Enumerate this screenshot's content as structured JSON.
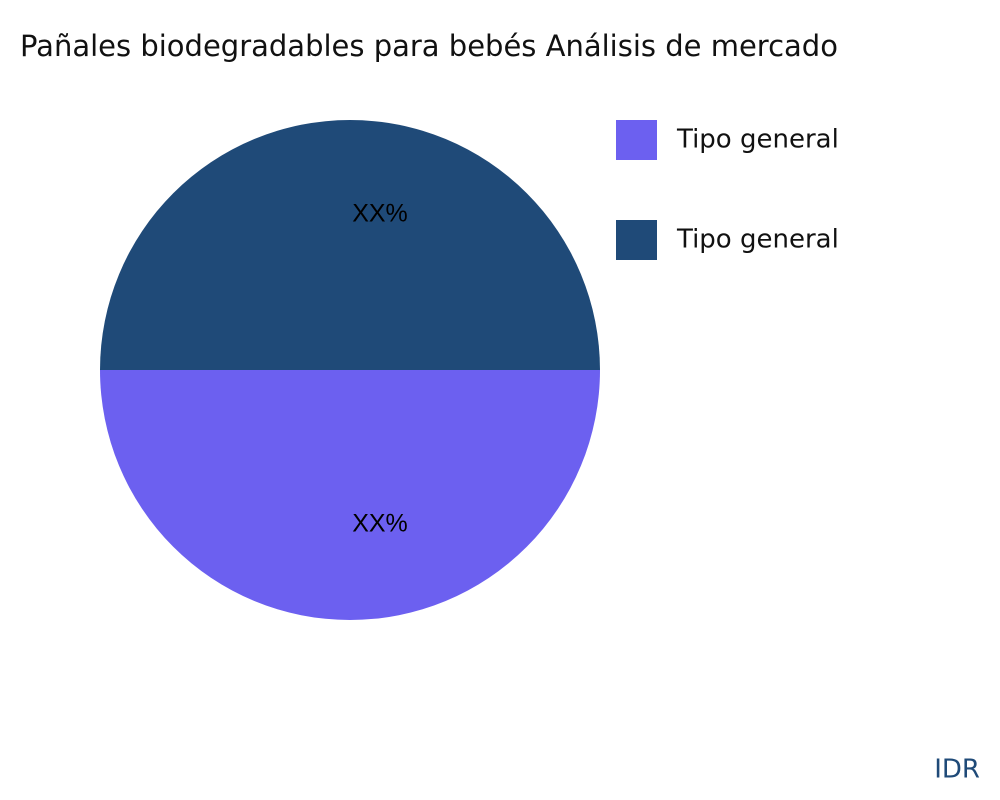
{
  "chart_data": {
    "type": "pie",
    "title": "Pañales biodegradables para bebés Análisis de mercado",
    "categories": [
      "Tipo general",
      "Tipo general"
    ],
    "values": [
      50,
      50
    ],
    "value_labels": [
      "XX%",
      "XX%"
    ],
    "colors": [
      "#6c60f0",
      "#1f4a78"
    ],
    "legend": "top-right"
  },
  "watermark": "IDR"
}
